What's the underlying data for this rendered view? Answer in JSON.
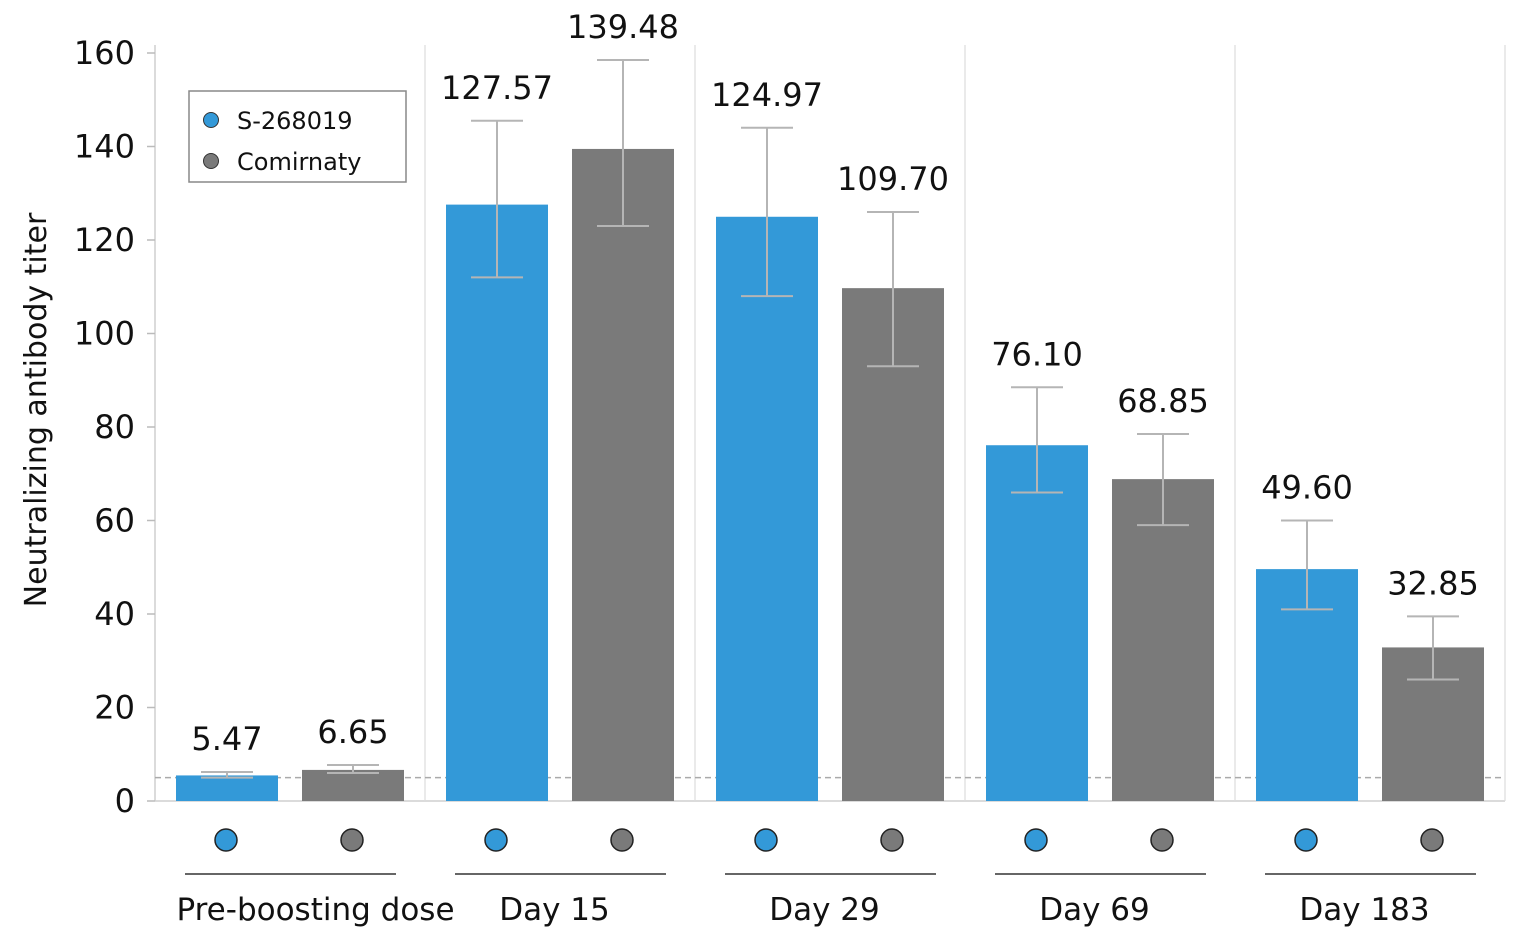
{
  "chart_data": {
    "type": "bar",
    "ylabel": "Neutralizing antibody titer",
    "xlabel": "",
    "ylim": [
      0,
      160
    ],
    "yticks": [
      0,
      20,
      40,
      60,
      80,
      100,
      120,
      140,
      160
    ],
    "categories": [
      "Pre-boosting dose",
      "Day 15",
      "Day 29",
      "Day 69",
      "Day 183"
    ],
    "series": [
      {
        "name": "S-268019",
        "color": "#3399d8",
        "values": [
          5.47,
          127.57,
          124.97,
          76.1,
          49.6
        ],
        "labels": [
          "5.47",
          "127.57",
          "124.97",
          "76.10",
          "49.60"
        ],
        "error_low": [
          5.0,
          112.0,
          108.0,
          66.0,
          41.0
        ],
        "error_high": [
          6.2,
          145.5,
          144.0,
          88.5,
          60.0
        ]
      },
      {
        "name": "Comirnaty",
        "color": "#7a7a7a",
        "values": [
          6.65,
          139.48,
          109.7,
          68.85,
          32.85
        ],
        "labels": [
          "6.65",
          "139.48",
          "109.70",
          "68.85",
          "32.85"
        ],
        "error_low": [
          6.0,
          123.0,
          93.0,
          59.0,
          26.0
        ],
        "error_high": [
          7.7,
          158.5,
          126.0,
          78.5,
          39.5
        ]
      }
    ],
    "reference_line": 5,
    "legend": "top-left",
    "grid": false
  }
}
